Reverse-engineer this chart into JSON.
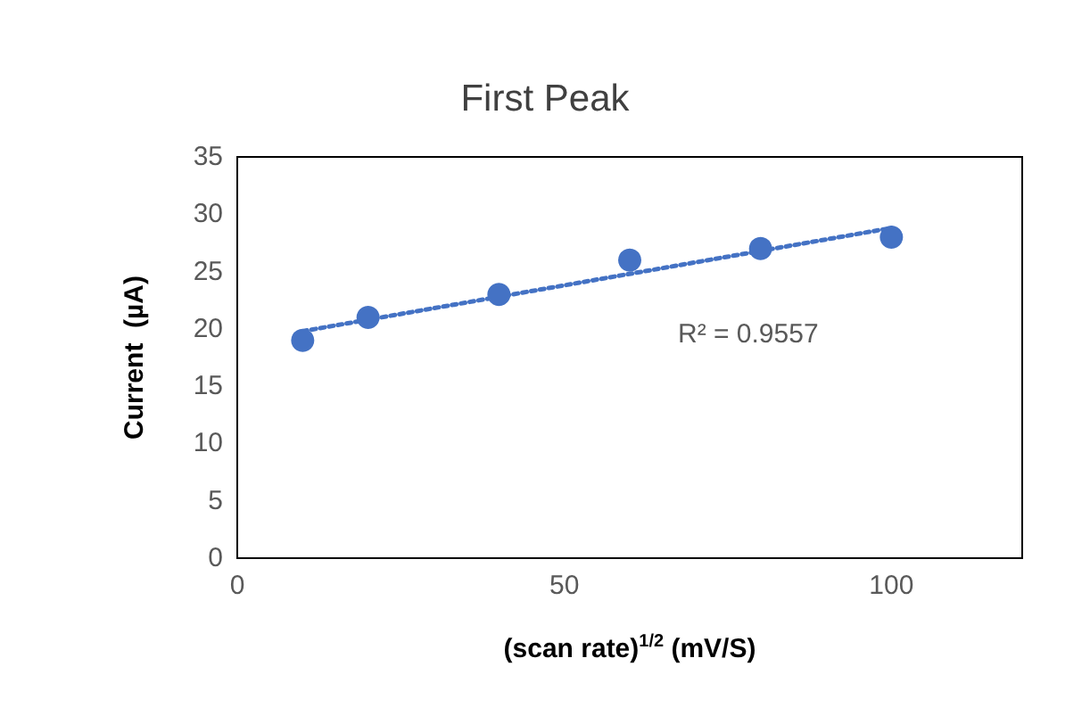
{
  "chart_data": {
    "type": "scatter",
    "title": "First Peak",
    "xlabel": "(scan rate)$^{1/2}$ (mV/S)",
    "ylabel": "Current  (µA)",
    "x": [
      10,
      20,
      40,
      60,
      80,
      100
    ],
    "series": [
      {
        "color": "#4472c4",
        "values": [
          19,
          21,
          23,
          26,
          27,
          28
        ],
        "marker": "circle"
      },
      {
        "type": "line",
        "color": "#4472c4",
        "x": [
          10,
          100
        ],
        "values": [
          19.8,
          28.8
        ],
        "line_style": "dotted",
        "marker": "none"
      }
    ],
    "xlim": [
      0,
      120
    ],
    "xticks": [
      0,
      50,
      100
    ],
    "ylim": [
      0,
      35
    ],
    "yticks": [
      0,
      5,
      10,
      15,
      20,
      25,
      30,
      35
    ],
    "grid": false,
    "annotations": [
      "R² = 0.9557"
    ]
  }
}
